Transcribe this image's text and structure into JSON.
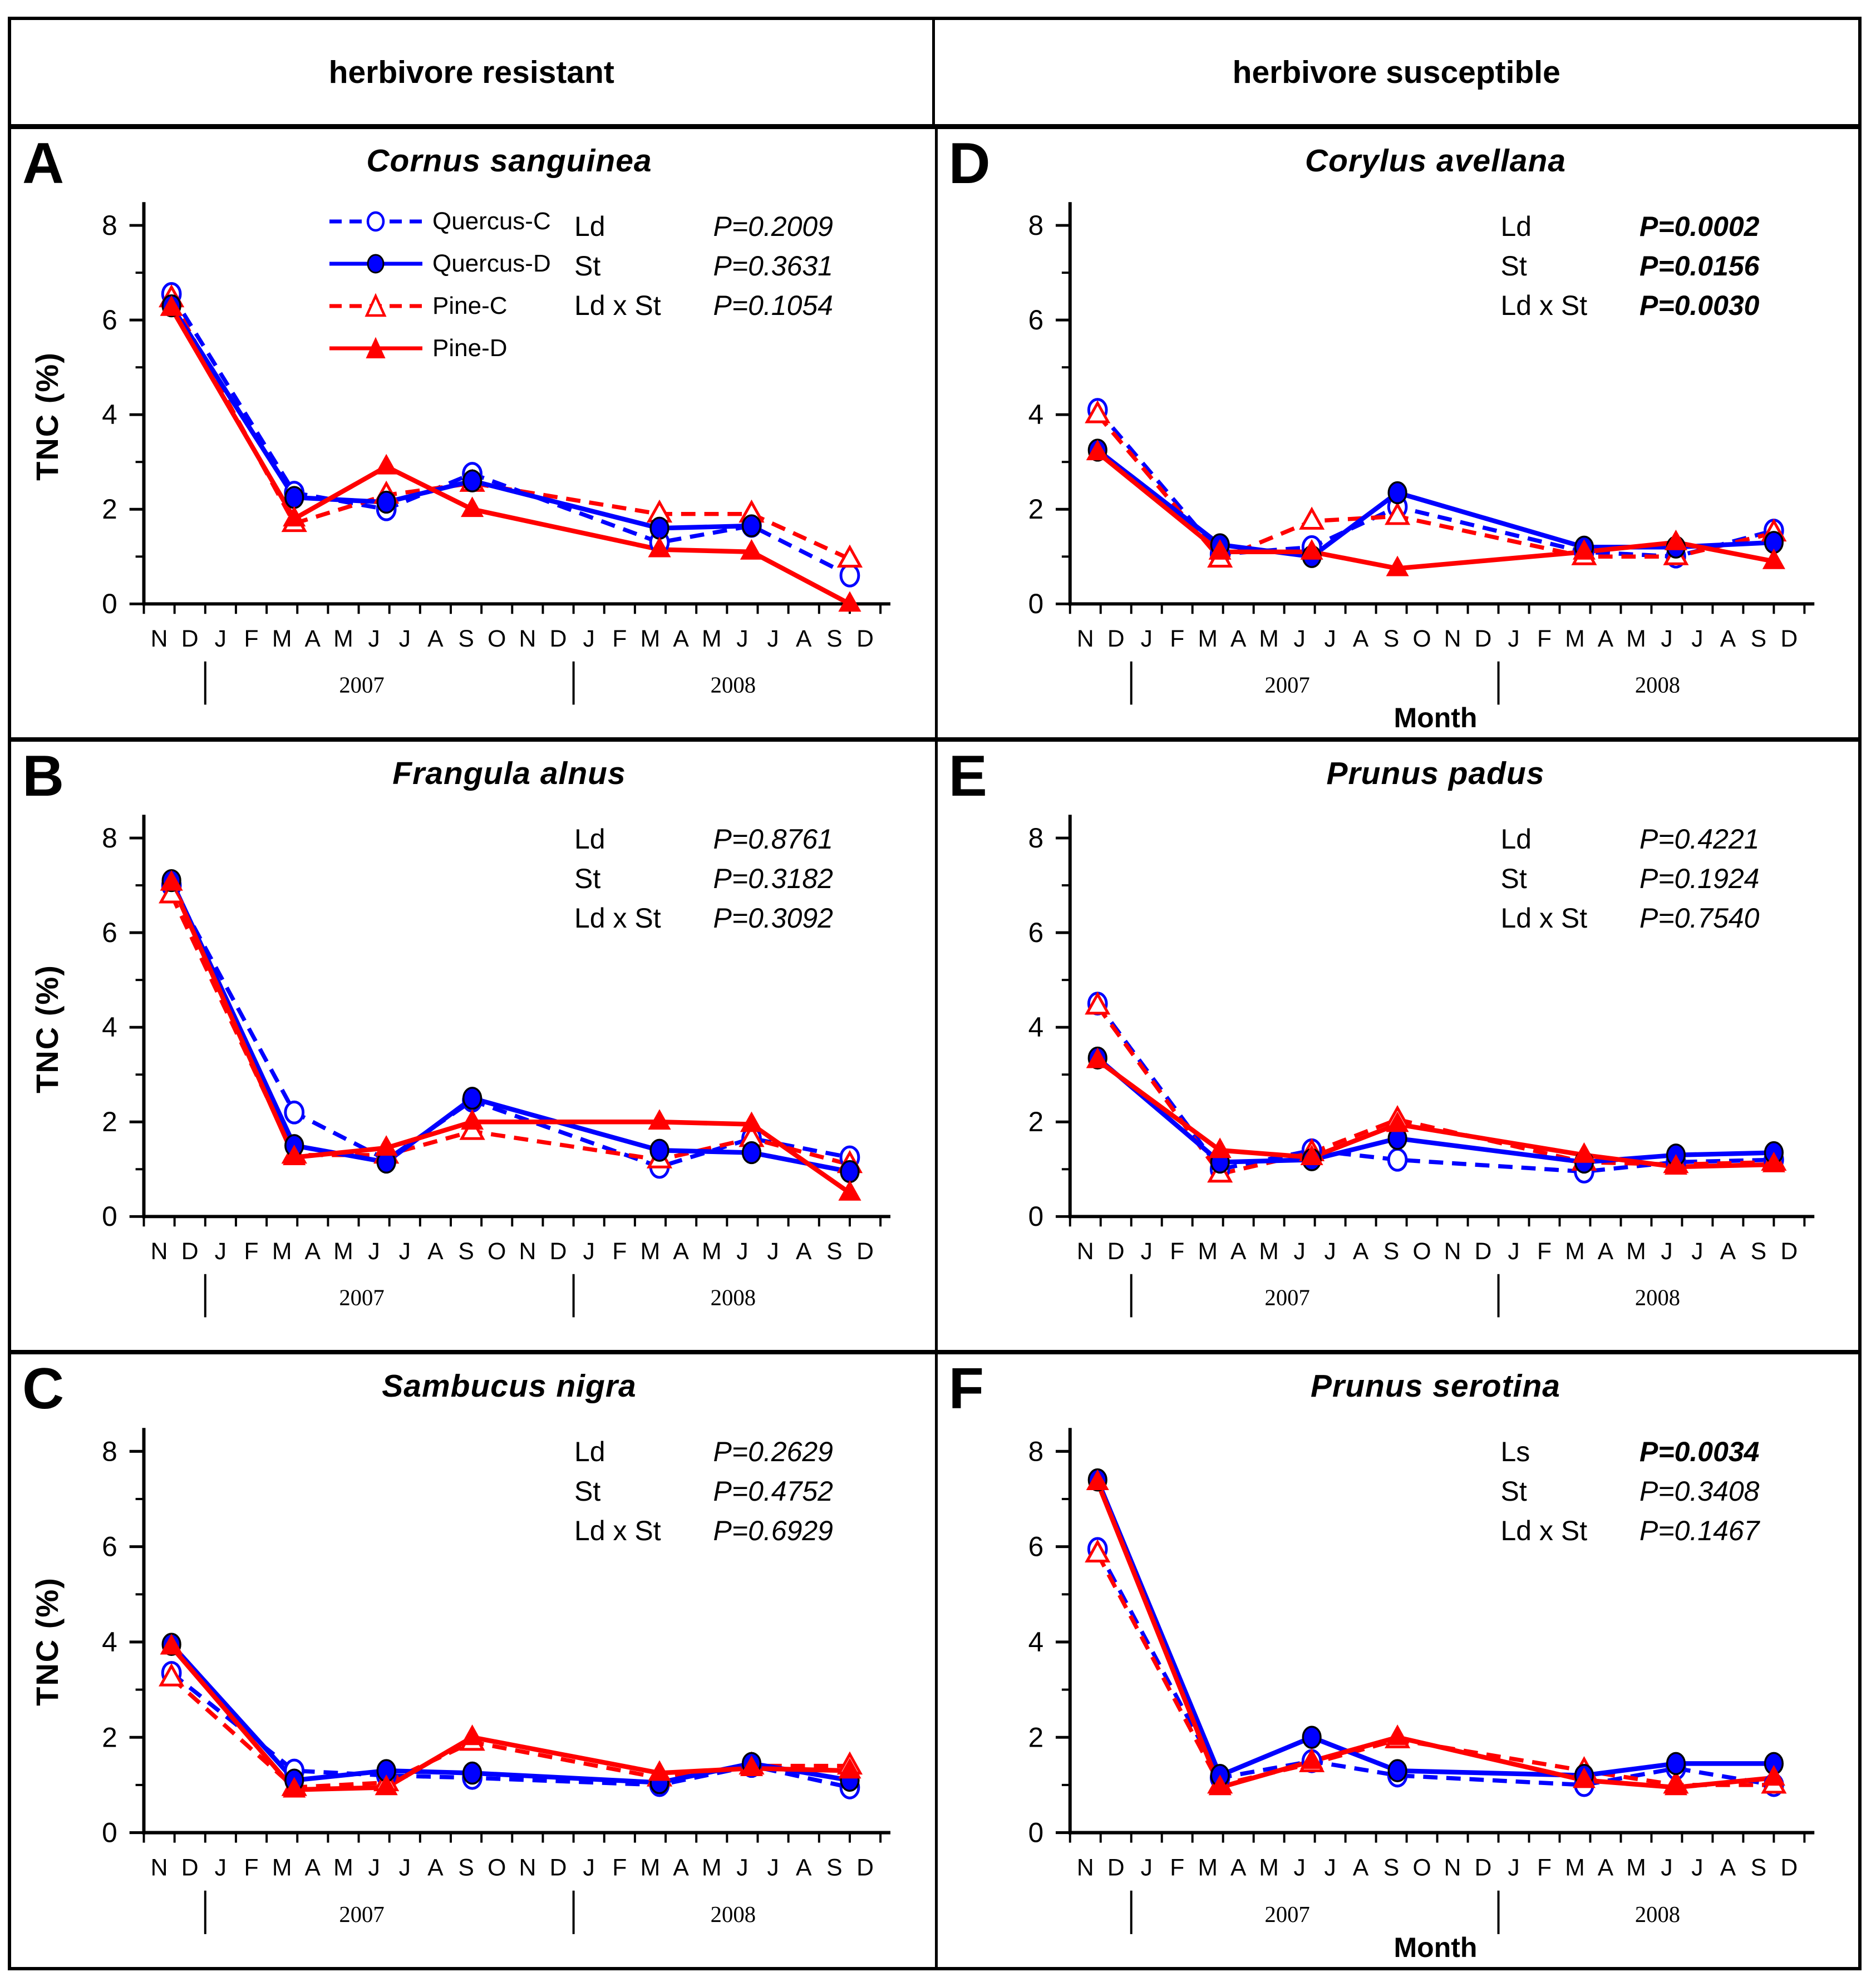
{
  "figure": {
    "headers": [
      {
        "label": "herbivore resistant"
      },
      {
        "label": "herbivore susceptible"
      }
    ]
  },
  "legend": {
    "items": [
      {
        "label": "Quercus-C",
        "series": "Quercus-C"
      },
      {
        "label": "Quercus-D",
        "series": "Quercus-D"
      },
      {
        "label": "Pine-C",
        "series": "Pine-C"
      },
      {
        "label": "Pine-D",
        "series": "Pine-D"
      }
    ]
  },
  "styles": {
    "series": {
      "Quercus-C": {
        "color": "#0000ff",
        "dashed": true,
        "marker": "circle",
        "filled": false
      },
      "Quercus-D": {
        "color": "#0000ff",
        "dashed": false,
        "marker": "circle",
        "filled": true
      },
      "Pine-C": {
        "color": "#ff0000",
        "dashed": true,
        "marker": "triangle",
        "filled": false
      },
      "Pine-D": {
        "color": "#ff0000",
        "dashed": false,
        "marker": "triangle",
        "filled": true
      }
    },
    "marker_outline": "#000000",
    "background": "#ffffff",
    "axis_color": "#000000"
  },
  "chart_data": {
    "type": "line",
    "y_axis": {
      "label": "TNC (%)",
      "ticks": [
        0,
        2,
        4,
        6,
        8
      ],
      "minor_ticks": [
        1,
        3,
        5,
        7
      ],
      "min": 0,
      "max": 8.5
    },
    "x_axis": {
      "label": "Month",
      "months": [
        "N",
        "D",
        "J",
        "F",
        "M",
        "A",
        "M",
        "J",
        "J",
        "A",
        "S",
        "O",
        "N",
        "D",
        "J",
        "F",
        "M",
        "A",
        "M",
        "J",
        "J",
        "A",
        "S",
        "D"
      ],
      "years": [
        {
          "label": "2007",
          "position": 7.1
        },
        {
          "label": "2008",
          "position": 19.2
        }
      ],
      "separator_glyph": "|",
      "separators": [
        2.0,
        14.0
      ]
    },
    "sample_positions": [
      0.9,
      4.9,
      7.9,
      10.7,
      16.8,
      19.8,
      23.0
    ],
    "sample_months": [
      "Nov/Dec 2006",
      "Apr 2007",
      "Jul 2007",
      "Oct 2007",
      "Apr 2008",
      "Jul 2008",
      "Dec 2008"
    ],
    "panels": [
      {
        "letter": "A",
        "title": "Cornus sanguinea",
        "group": "herbivore resistant",
        "show_legend": true,
        "show_y_label": true,
        "show_x_label": false,
        "stats": [
          {
            "label": "Ld",
            "value": "P=0.2009",
            "bold": false
          },
          {
            "label": "St",
            "value": "P=0.3631",
            "bold": false
          },
          {
            "label": "Ld x St",
            "value": "P=0.1054",
            "bold": false
          }
        ],
        "series": [
          {
            "name": "Quercus-C",
            "values": [
              6.55,
              2.35,
              2.0,
              2.75,
              1.3,
              1.65,
              0.6
            ]
          },
          {
            "name": "Quercus-D",
            "values": [
              6.3,
              2.25,
              2.15,
              2.6,
              1.6,
              1.65,
              null
            ]
          },
          {
            "name": "Pine-C",
            "values": [
              6.45,
              1.7,
              2.3,
              2.55,
              1.9,
              1.9,
              0.95
            ]
          },
          {
            "name": "Pine-D",
            "values": [
              6.25,
              1.8,
              2.9,
              2.0,
              1.15,
              1.1,
              0.0
            ]
          }
        ]
      },
      {
        "letter": "B",
        "title": "Frangula alnus",
        "group": "herbivore resistant",
        "show_legend": false,
        "show_y_label": true,
        "show_x_label": false,
        "stats": [
          {
            "label": "Ld",
            "value": "P=0.8761",
            "bold": false
          },
          {
            "label": "St",
            "value": "P=0.3182",
            "bold": false
          },
          {
            "label": "Ld x St",
            "value": "P=0.3092",
            "bold": false
          }
        ],
        "series": [
          {
            "name": "Quercus-C",
            "values": [
              7.0,
              2.2,
              1.2,
              2.45,
              1.05,
              1.65,
              1.25
            ]
          },
          {
            "name": "Quercus-D",
            "values": [
              7.1,
              1.5,
              1.15,
              2.5,
              1.4,
              1.35,
              0.95
            ]
          },
          {
            "name": "Pine-C",
            "values": [
              6.8,
              1.3,
              1.3,
              1.8,
              1.2,
              1.65,
              1.1
            ]
          },
          {
            "name": "Pine-D",
            "values": [
              7.05,
              1.25,
              1.45,
              2.0,
              2.0,
              1.95,
              0.5
            ]
          }
        ]
      },
      {
        "letter": "C",
        "title": "Sambucus nigra",
        "group": "herbivore resistant",
        "show_legend": false,
        "show_y_label": true,
        "show_x_label": false,
        "stats": [
          {
            "label": "Ld",
            "value": "P=0.2629",
            "bold": false
          },
          {
            "label": "St",
            "value": "P=0.4752",
            "bold": false
          },
          {
            "label": "Ld x St",
            "value": "P=0.6929",
            "bold": false
          }
        ],
        "series": [
          {
            "name": "Quercus-C",
            "values": [
              3.35,
              1.3,
              1.2,
              1.15,
              1.0,
              1.4,
              0.95
            ]
          },
          {
            "name": "Quercus-D",
            "values": [
              3.95,
              1.1,
              1.3,
              1.25,
              1.05,
              1.45,
              1.1
            ]
          },
          {
            "name": "Pine-C",
            "values": [
              3.25,
              0.95,
              1.05,
              1.9,
              1.15,
              1.4,
              1.4
            ]
          },
          {
            "name": "Pine-D",
            "values": [
              3.9,
              0.9,
              0.95,
              2.0,
              1.25,
              1.35,
              1.3
            ]
          }
        ]
      },
      {
        "letter": "D",
        "title": "Corylus avellana",
        "group": "herbivore susceptible",
        "show_legend": false,
        "show_y_label": false,
        "show_x_label": true,
        "stats": [
          {
            "label": "Ld",
            "value": "P=0.0002",
            "bold": true
          },
          {
            "label": "St",
            "value": "P=0.0156",
            "bold": true
          },
          {
            "label": "Ld x St",
            "value": "P=0.0030",
            "bold": true
          }
        ],
        "series": [
          {
            "name": "Quercus-C",
            "values": [
              4.1,
              1.05,
              1.2,
              2.05,
              1.1,
              1.0,
              1.55
            ]
          },
          {
            "name": "Quercus-D",
            "values": [
              3.25,
              1.25,
              1.0,
              2.35,
              1.2,
              1.2,
              1.3
            ]
          },
          {
            "name": "Pine-C",
            "values": [
              4.0,
              0.95,
              1.75,
              1.85,
              1.0,
              1.0,
              1.5
            ]
          },
          {
            "name": "Pine-D",
            "values": [
              3.2,
              1.1,
              1.1,
              0.75,
              1.1,
              1.3,
              0.9
            ]
          }
        ]
      },
      {
        "letter": "E",
        "title": "Prunus padus",
        "group": "herbivore susceptible",
        "show_legend": false,
        "show_y_label": false,
        "show_x_label": false,
        "stats": [
          {
            "label": "Ld",
            "value": "P=0.4221",
            "bold": false
          },
          {
            "label": "St",
            "value": "P=0.1924",
            "bold": false
          },
          {
            "label": "Ld x St",
            "value": "P=0.7540",
            "bold": false
          }
        ],
        "series": [
          {
            "name": "Quercus-C",
            "values": [
              4.5,
              1.0,
              1.4,
              1.2,
              0.95,
              1.15,
              1.2
            ]
          },
          {
            "name": "Quercus-D",
            "values": [
              3.35,
              1.15,
              1.2,
              1.65,
              1.15,
              1.3,
              1.35
            ]
          },
          {
            "name": "Pine-C",
            "values": [
              4.45,
              0.9,
              1.35,
              2.05,
              1.15,
              1.1,
              1.15
            ]
          },
          {
            "name": "Pine-D",
            "values": [
              3.3,
              1.4,
              1.25,
              1.95,
              1.3,
              1.05,
              1.1
            ]
          }
        ]
      },
      {
        "letter": "F",
        "title": "Prunus serotina",
        "group": "herbivore susceptible",
        "show_legend": false,
        "show_y_label": false,
        "show_x_label": true,
        "stats": [
          {
            "label": "Ls",
            "value": "P=0.0034",
            "bold": true
          },
          {
            "label": "St",
            "value": "P=0.3408",
            "bold": false
          },
          {
            "label": "Ld x St",
            "value": "P=0.1467",
            "bold": false
          }
        ],
        "series": [
          {
            "name": "Quercus-C",
            "values": [
              5.95,
              1.15,
              1.5,
              1.2,
              1.0,
              1.35,
              1.0
            ]
          },
          {
            "name": "Quercus-D",
            "values": [
              7.4,
              1.2,
              2.0,
              1.3,
              1.2,
              1.45,
              1.45
            ]
          },
          {
            "name": "Pine-C",
            "values": [
              5.85,
              1.0,
              1.45,
              1.95,
              1.3,
              1.0,
              1.0
            ]
          },
          {
            "name": "Pine-D",
            "values": [
              7.35,
              0.95,
              1.5,
              2.0,
              1.1,
              0.95,
              1.15
            ]
          }
        ]
      }
    ]
  }
}
